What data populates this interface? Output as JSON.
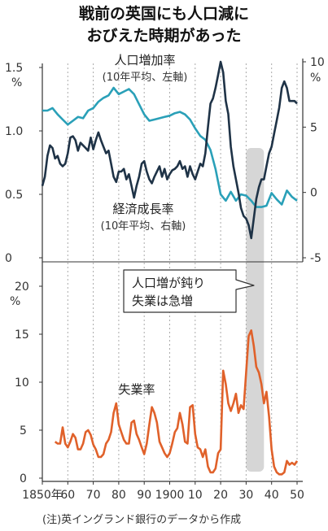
{
  "title": {
    "line1": "戦前の英国にも人口減に",
    "line2": "おびえた時期があった"
  },
  "note": "(注)英イングランド銀行のデータから作成",
  "callout": {
    "line1": "人口増が鈍り",
    "line2": "失業は急増"
  },
  "colors": {
    "population": "#2aa0b8",
    "growth": "#1f3347",
    "unemployment": "#e0612a",
    "shade": "#cfcfcf"
  },
  "chart_data": [
    {
      "type": "line",
      "panel": "top",
      "x_range": [
        1850,
        1950
      ],
      "x_ticks": [
        "1850年",
        "60",
        "70",
        "80",
        "90",
        "1900",
        "10",
        "20",
        "30",
        "40",
        "50"
      ],
      "left_axis": {
        "unit": "%",
        "ylim": [
          0,
          1.5
        ],
        "ticks": [
          "1.5",
          "1.0",
          "0.5",
          "0"
        ]
      },
      "right_axis": {
        "unit": "%",
        "ylim": [
          -5,
          10
        ],
        "ticks": [
          "10",
          "5",
          "0",
          "-5"
        ]
      },
      "highlight_range": [
        1930,
        1937
      ],
      "series": [
        {
          "name": "人口増加率",
          "sub": "(10年平均、左軸)",
          "axis": "left",
          "x": [
            1850,
            1852,
            1854,
            1856,
            1858,
            1860,
            1862,
            1864,
            1866,
            1868,
            1870,
            1872,
            1874,
            1876,
            1878,
            1880,
            1882,
            1884,
            1886,
            1888,
            1890,
            1892,
            1894,
            1896,
            1898,
            1900,
            1902,
            1904,
            1906,
            1908,
            1910,
            1912,
            1914,
            1916,
            1918,
            1920,
            1922,
            1924,
            1926,
            1928,
            1930,
            1932,
            1934,
            1936,
            1938,
            1940,
            1942,
            1944,
            1946,
            1948,
            1950
          ],
          "values": [
            1.16,
            1.16,
            1.18,
            1.13,
            1.09,
            1.05,
            1.08,
            1.11,
            1.1,
            1.16,
            1.18,
            1.23,
            1.26,
            1.28,
            1.34,
            1.29,
            1.31,
            1.33,
            1.29,
            1.21,
            1.13,
            1.08,
            1.09,
            1.1,
            1.11,
            1.12,
            1.14,
            1.15,
            1.13,
            1.09,
            1.02,
            0.96,
            0.93,
            0.85,
            0.7,
            0.5,
            0.45,
            0.52,
            0.45,
            0.5,
            0.49,
            0.45,
            0.4,
            0.4,
            0.41,
            0.51,
            0.46,
            0.42,
            0.53,
            0.48,
            0.45
          ]
        },
        {
          "name": "経済成長率",
          "sub": "(10年平均、右軸)",
          "axis": "right",
          "x": [
            1850,
            1851,
            1852,
            1853,
            1854,
            1855,
            1856,
            1857,
            1858,
            1859,
            1860,
            1861,
            1862,
            1863,
            1864,
            1865,
            1866,
            1867,
            1868,
            1869,
            1870,
            1871,
            1872,
            1873,
            1874,
            1875,
            1876,
            1877,
            1878,
            1879,
            1880,
            1881,
            1882,
            1883,
            1884,
            1885,
            1886,
            1887,
            1888,
            1889,
            1890,
            1891,
            1892,
            1893,
            1894,
            1895,
            1896,
            1897,
            1898,
            1899,
            1900,
            1901,
            1902,
            1903,
            1904,
            1905,
            1906,
            1907,
            1908,
            1909,
            1910,
            1911,
            1912,
            1913,
            1914,
            1915,
            1916,
            1917,
            1918,
            1919,
            1920,
            1921,
            1922,
            1923,
            1924,
            1925,
            1926,
            1927,
            1928,
            1929,
            1930,
            1931,
            1932,
            1933,
            1934,
            1935,
            1936,
            1937,
            1938,
            1939,
            1940,
            1941,
            1942,
            1943,
            1944,
            1945,
            1946,
            1947,
            1948,
            1949,
            1950
          ],
          "values": [
            0.5,
            1.2,
            2.8,
            3.6,
            3.4,
            2.6,
            2.8,
            2.2,
            2.0,
            2.2,
            3.0,
            4.2,
            4.3,
            4.0,
            3.2,
            3.8,
            3.6,
            3.4,
            3.2,
            4.2,
            3.3,
            4.0,
            4.6,
            4.0,
            3.5,
            3.0,
            3.2,
            2.2,
            1.2,
            0.8,
            1.6,
            1.6,
            1.8,
            1.0,
            1.4,
            0.5,
            -0.4,
            0.5,
            1.2,
            2.2,
            2.4,
            1.6,
            1.0,
            0.7,
            1.2,
            1.6,
            2.0,
            1.2,
            1.8,
            1.0,
            1.4,
            1.7,
            1.8,
            2.0,
            2.4,
            1.8,
            2.0,
            1.2,
            2.0,
            1.4,
            1.0,
            1.6,
            2.2,
            2.0,
            3.0,
            5.0,
            6.8,
            7.2,
            8.0,
            9.0,
            10.0,
            9.2,
            7.0,
            6.0,
            3.5,
            2.0,
            1.0,
            0.0,
            -1.2,
            -1.8,
            -2.0,
            -2.5,
            -3.5,
            -2.0,
            -0.5,
            0.4,
            1.0,
            1.0,
            2.0,
            3.0,
            3.5,
            4.5,
            5.5,
            6.5,
            8.0,
            8.5,
            8.0,
            7.0,
            7.0,
            7.0,
            6.8
          ]
        }
      ]
    },
    {
      "type": "line",
      "panel": "bottom",
      "x_range": [
        1850,
        1950
      ],
      "y_axis": {
        "unit": "%",
        "ylim": [
          0,
          20
        ],
        "ticks": [
          "20",
          "15",
          "10",
          "5",
          "0"
        ]
      },
      "highlight_range": [
        1930,
        1937
      ],
      "series": [
        {
          "name": "失業率",
          "x": [
            1855,
            1856,
            1857,
            1858,
            1859,
            1860,
            1861,
            1862,
            1863,
            1864,
            1865,
            1866,
            1867,
            1868,
            1869,
            1870,
            1871,
            1872,
            1873,
            1874,
            1875,
            1876,
            1877,
            1878,
            1879,
            1880,
            1881,
            1882,
            1883,
            1884,
            1885,
            1886,
            1887,
            1888,
            1889,
            1890,
            1891,
            1892,
            1893,
            1894,
            1895,
            1896,
            1897,
            1898,
            1899,
            1900,
            1901,
            1902,
            1903,
            1904,
            1905,
            1906,
            1907,
            1908,
            1909,
            1910,
            1911,
            1912,
            1913,
            1914,
            1915,
            1916,
            1917,
            1918,
            1919,
            1920,
            1921,
            1922,
            1923,
            1924,
            1925,
            1926,
            1927,
            1928,
            1929,
            1930,
            1931,
            1932,
            1933,
            1934,
            1935,
            1936,
            1937,
            1938,
            1939,
            1940,
            1941,
            1942,
            1943,
            1944,
            1945,
            1946,
            1947,
            1948,
            1949,
            1950
          ],
          "values": [
            3.8,
            3.6,
            3.6,
            5.3,
            3.6,
            3.2,
            3.8,
            4.6,
            4.2,
            3.0,
            3.0,
            3.6,
            4.8,
            5.0,
            4.5,
            3.5,
            3.0,
            2.2,
            2.2,
            2.5,
            3.6,
            4.0,
            4.8,
            6.8,
            7.8,
            5.6,
            4.8,
            4.0,
            3.6,
            3.6,
            5.8,
            6.0,
            4.6,
            4.0,
            3.2,
            2.5,
            3.6,
            5.6,
            7.4,
            6.8,
            5.8,
            3.8,
            3.2,
            2.6,
            2.2,
            2.6,
            3.6,
            4.8,
            5.2,
            6.8,
            5.6,
            3.8,
            3.6,
            7.4,
            7.6,
            4.6,
            3.2,
            3.0,
            2.2,
            3.0,
            1.2,
            0.6,
            0.6,
            1.0,
            2.6,
            3.0,
            11.2,
            9.8,
            7.8,
            7.0,
            7.8,
            8.8,
            6.8,
            7.6,
            7.2,
            11.0,
            14.8,
            15.4,
            13.8,
            11.6,
            11.0,
            9.8,
            7.8,
            9.0,
            6.4,
            3.0,
            1.2,
            0.6,
            0.4,
            0.4,
            0.6,
            1.8,
            1.4,
            1.6,
            1.4,
            1.8
          ]
        }
      ]
    }
  ]
}
